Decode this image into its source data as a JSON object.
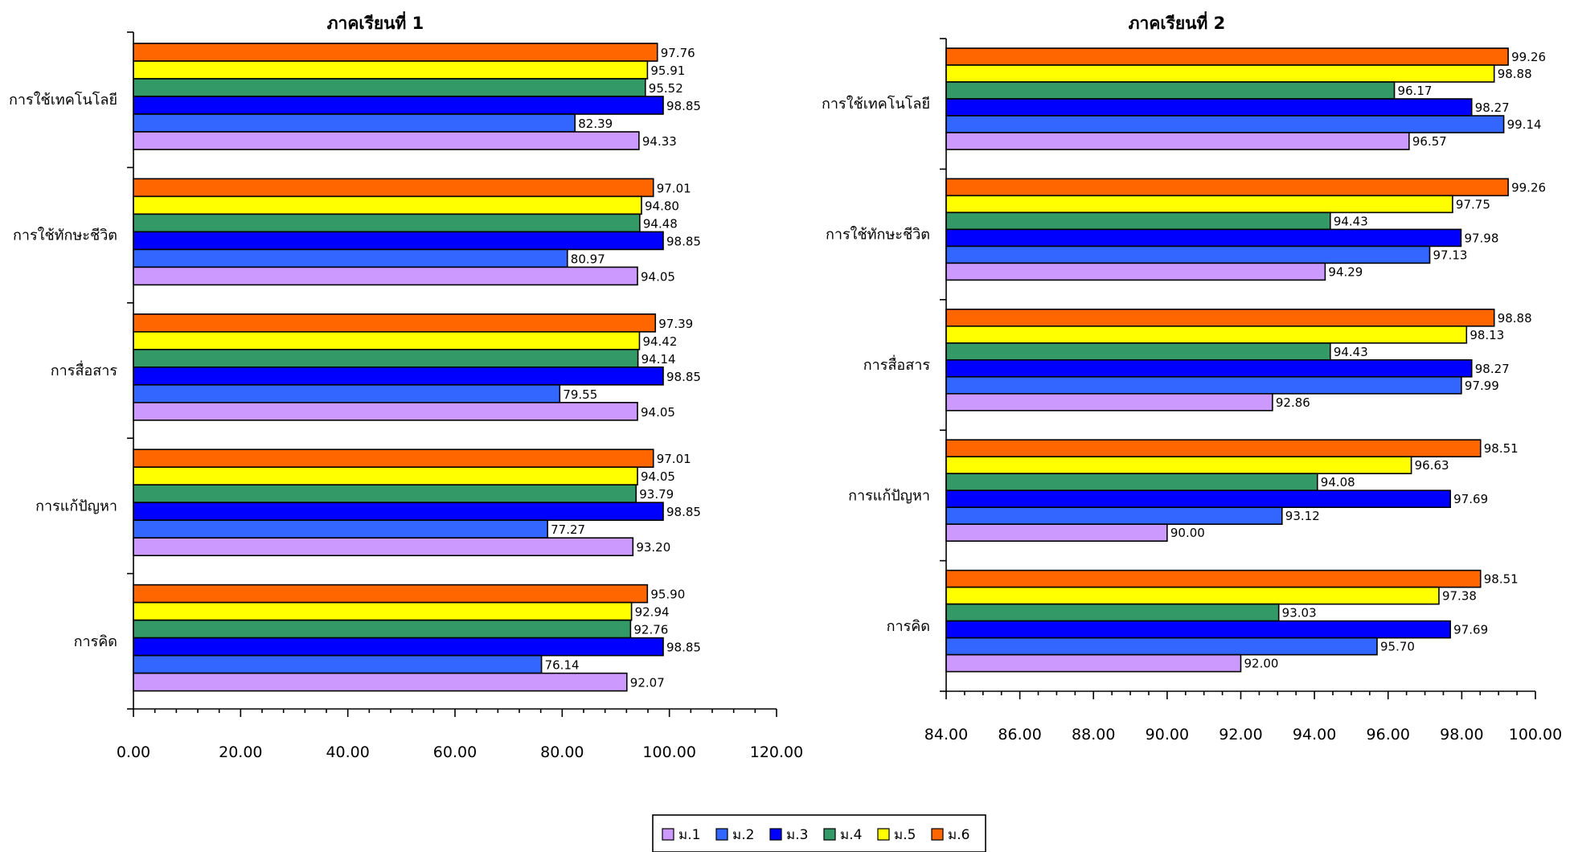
{
  "legend": {
    "items": [
      {
        "label": "ม.1",
        "color": "#cc99ff"
      },
      {
        "label": "ม.2",
        "color": "#3366ff"
      },
      {
        "label": "ม.3",
        "color": "#0000ff"
      },
      {
        "label": "ม.4",
        "color": "#339966"
      },
      {
        "label": "ม.5",
        "color": "#ffff00"
      },
      {
        "label": "ม.6",
        "color": "#ff6600"
      }
    ]
  },
  "chart_data": [
    {
      "type": "bar",
      "orientation": "horizontal",
      "title": "ภาคเรียนที่ 1",
      "categories": [
        "การใช้เทคโนโลยี",
        "การใช้ทักษะชีวิต",
        "การสื่อสาร",
        "การแก้ปัญหา",
        "การคิด"
      ],
      "xlim": [
        0,
        120
      ],
      "xticks": [
        "0.00",
        "20.00",
        "40.00",
        "60.00",
        "80.00",
        "100.00",
        "120.00"
      ],
      "grid": false,
      "legend_position": "bottom",
      "series": [
        {
          "name": "ม.1",
          "color": "#cc99ff",
          "values": [
            94.33,
            94.05,
            94.05,
            93.2,
            92.07
          ]
        },
        {
          "name": "ม.2",
          "color": "#3366ff",
          "values": [
            82.39,
            80.97,
            79.55,
            77.27,
            76.14
          ]
        },
        {
          "name": "ม.3",
          "color": "#0000ff",
          "values": [
            98.85,
            98.85,
            98.85,
            98.85,
            98.85
          ]
        },
        {
          "name": "ม.4",
          "color": "#339966",
          "values": [
            95.52,
            94.48,
            94.14,
            93.79,
            92.76
          ]
        },
        {
          "name": "ม.5",
          "color": "#ffff00",
          "values": [
            95.91,
            94.8,
            94.42,
            94.05,
            92.94
          ]
        },
        {
          "name": "ม.6",
          "color": "#ff6600",
          "values": [
            97.76,
            97.01,
            97.39,
            97.01,
            95.9
          ]
        }
      ]
    },
    {
      "type": "bar",
      "orientation": "horizontal",
      "title": "ภาคเรียนที่ 2",
      "categories": [
        "การใช้เทคโนโลยี",
        "การใช้ทักษะชีวิต",
        "การสื่อสาร",
        "การแก้ปัญหา",
        "การคิด"
      ],
      "xlim": [
        84,
        100
      ],
      "xticks": [
        "84.00",
        "86.00",
        "88.00",
        "90.00",
        "92.00",
        "94.00",
        "96.00",
        "98.00",
        "100.00"
      ],
      "grid": false,
      "legend_position": "bottom",
      "series": [
        {
          "name": "ม.1",
          "color": "#cc99ff",
          "values": [
            96.57,
            94.29,
            92.86,
            90.0,
            92.0
          ]
        },
        {
          "name": "ม.2",
          "color": "#3366ff",
          "values": [
            99.14,
            97.13,
            97.99,
            93.12,
            95.7
          ]
        },
        {
          "name": "ม.3",
          "color": "#0000ff",
          "values": [
            98.27,
            97.98,
            98.27,
            97.69,
            97.69
          ]
        },
        {
          "name": "ม.4",
          "color": "#339966",
          "values": [
            96.17,
            94.43,
            94.43,
            94.08,
            93.03
          ]
        },
        {
          "name": "ม.5",
          "color": "#ffff00",
          "values": [
            98.88,
            97.75,
            98.13,
            96.63,
            97.38
          ]
        },
        {
          "name": "ม.6",
          "color": "#ff6600",
          "values": [
            99.26,
            99.26,
            98.88,
            98.51,
            98.51
          ]
        }
      ]
    }
  ]
}
